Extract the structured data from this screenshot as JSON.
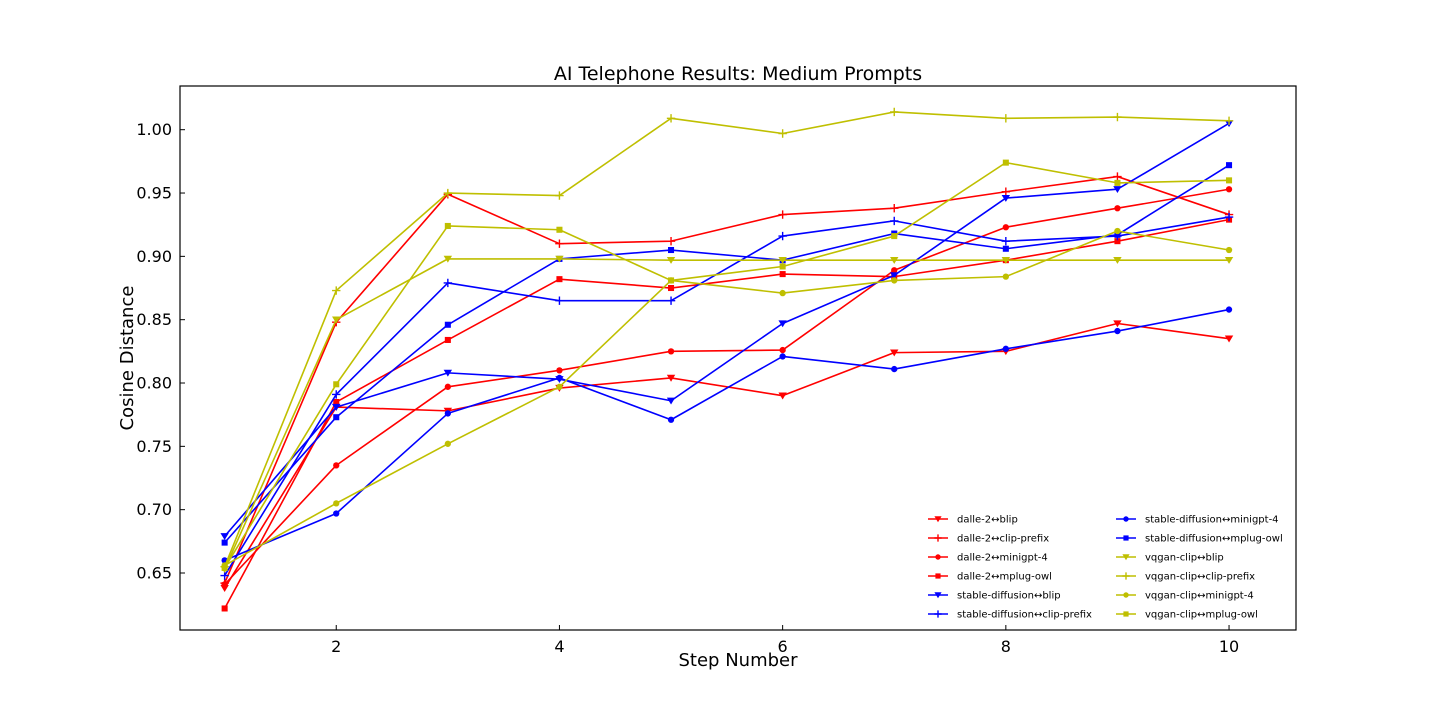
{
  "chart_data": {
    "type": "line",
    "title": "AI Telephone Results: Medium Prompts",
    "xlabel": "Step Number",
    "ylabel": "Cosine Distance",
    "xlim": [
      0.6,
      10.6
    ],
    "ylim": [
      0.605,
      1.0345
    ],
    "xticks": [
      2,
      4,
      6,
      8,
      10
    ],
    "yticks": [
      0.65,
      0.7,
      0.75,
      0.8,
      0.85,
      0.9,
      0.95,
      1.0
    ],
    "ytick_labels": [
      "0.65",
      "0.70",
      "0.75",
      "0.80",
      "0.85",
      "0.90",
      "0.95",
      "1.00"
    ],
    "grid": false,
    "legend_position": "lower-right",
    "x": [
      1,
      2,
      3,
      4,
      5,
      6,
      7,
      8,
      9,
      10
    ],
    "series": [
      {
        "name": "dalle-2↔blip",
        "color": "#ff0000",
        "marker": "triangle-down",
        "values": [
          0.638,
          0.781,
          0.778,
          0.796,
          0.804,
          0.79,
          0.824,
          0.825,
          0.847,
          0.835
        ]
      },
      {
        "name": "dalle-2↔clip-prefix",
        "color": "#ff0000",
        "marker": "plus",
        "values": [
          0.642,
          0.848,
          0.949,
          0.91,
          0.912,
          0.933,
          0.938,
          0.951,
          0.963,
          0.933
        ]
      },
      {
        "name": "dalle-2↔minigpt-4",
        "color": "#ff0000",
        "marker": "circle",
        "values": [
          0.641,
          0.735,
          0.797,
          0.81,
          0.825,
          0.826,
          0.889,
          0.923,
          0.938,
          0.953
        ]
      },
      {
        "name": "dalle-2↔mplug-owl",
        "color": "#ff0000",
        "marker": "square",
        "values": [
          0.622,
          0.785,
          0.834,
          0.882,
          0.875,
          0.886,
          0.884,
          0.897,
          0.912,
          0.929
        ]
      },
      {
        "name": "stable-diffusion↔blip",
        "color": "#0000ff",
        "marker": "triangle-down",
        "values": [
          0.679,
          0.781,
          0.808,
          0.803,
          0.786,
          0.847,
          0.885,
          0.946,
          0.953,
          1.005
        ]
      },
      {
        "name": "stable-diffusion↔clip-prefix",
        "color": "#0000ff",
        "marker": "plus",
        "values": [
          0.648,
          0.791,
          0.879,
          0.865,
          0.865,
          0.916,
          0.928,
          0.912,
          0.916,
          0.931
        ]
      },
      {
        "name": "stable-diffusion↔minigpt-4",
        "color": "#0000ff",
        "marker": "circle",
        "values": [
          0.66,
          0.697,
          0.776,
          0.804,
          0.771,
          0.821,
          0.811,
          0.827,
          0.841,
          0.858
        ]
      },
      {
        "name": "stable-diffusion↔mplug-owl",
        "color": "#0000ff",
        "marker": "square",
        "values": [
          0.674,
          0.773,
          0.846,
          0.898,
          0.905,
          0.897,
          0.918,
          0.906,
          0.917,
          0.972
        ]
      },
      {
        "name": "vqgan-clip↔blip",
        "color": "#bfbf00",
        "marker": "triangle-down",
        "values": [
          0.653,
          0.85,
          0.898,
          0.898,
          0.897,
          0.897,
          0.897,
          0.897,
          0.897,
          0.897
        ]
      },
      {
        "name": "vqgan-clip↔clip-prefix",
        "color": "#bfbf00",
        "marker": "plus",
        "values": [
          0.655,
          0.873,
          0.95,
          0.948,
          1.009,
          0.997,
          1.014,
          1.009,
          1.01,
          1.007
        ]
      },
      {
        "name": "vqgan-clip↔minigpt-4",
        "color": "#bfbf00",
        "marker": "circle",
        "values": [
          0.656,
          0.705,
          0.752,
          0.797,
          0.881,
          0.871,
          0.881,
          0.884,
          0.92,
          0.905
        ]
      },
      {
        "name": "vqgan-clip↔mplug-owl",
        "color": "#bfbf00",
        "marker": "square",
        "values": [
          0.654,
          0.799,
          0.924,
          0.921,
          0.881,
          0.892,
          0.916,
          0.974,
          0.958,
          0.96
        ]
      }
    ]
  }
}
